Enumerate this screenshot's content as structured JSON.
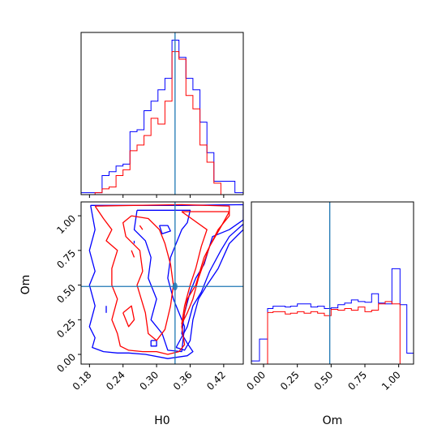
{
  "chart_data": {
    "type": "corner",
    "parameters": [
      "H0",
      "Om"
    ],
    "truth": {
      "H0": 0.333,
      "Om": 0.49
    },
    "series_colors": {
      "blue": "#0000ff",
      "red": "#ff0000",
      "truth": "#1f77b4"
    },
    "hist_H0": {
      "xlim": [
        0.165,
        0.455
      ],
      "bins": [
        0.165,
        0.1775,
        0.19,
        0.2025,
        0.215,
        0.2275,
        0.24,
        0.2525,
        0.265,
        0.2775,
        0.29,
        0.3025,
        0.315,
        0.3275,
        0.34,
        0.3525,
        0.365,
        0.3775,
        0.39,
        0.4025,
        0.415,
        0.4275,
        0.44,
        0.455
      ],
      "blue": [
        1,
        1,
        1,
        10,
        12,
        15,
        16,
        33,
        34,
        44,
        49,
        55,
        61,
        81,
        72,
        61,
        55,
        38,
        22,
        7,
        7,
        7,
        1
      ],
      "red": [
        0,
        0,
        1,
        3,
        4,
        10,
        13,
        23,
        26,
        31,
        40,
        37,
        49,
        75,
        71,
        52,
        45,
        26,
        17,
        6,
        0,
        0,
        0
      ],
      "show_y_ticks": false,
      "show_x_tick_labels": false
    },
    "hist_Om": {
      "xlim": [
        -0.09,
        1.11
      ],
      "bins": [
        -0.09,
        -0.03,
        0.03,
        0.07,
        0.11,
        0.16,
        0.2,
        0.25,
        0.3,
        0.35,
        0.4,
        0.45,
        0.5,
        0.55,
        0.6,
        0.65,
        0.7,
        0.75,
        0.8,
        0.85,
        0.9,
        0.95,
        1.01,
        1.06,
        1.11
      ],
      "blue": [
        4,
        32,
        71,
        74,
        74,
        73,
        74,
        77,
        77,
        73,
        74,
        71,
        72,
        76,
        78,
        82,
        80,
        79,
        90,
        78,
        77,
        122,
        76,
        14
      ],
      "red": [
        0,
        0,
        66,
        67,
        67,
        64,
        65,
        67,
        65,
        67,
        65,
        62,
        70,
        69,
        71,
        69,
        73,
        67,
        69,
        77,
        80,
        77,
        0,
        0
      ],
      "show_y_ticks": false
    },
    "scatter_2d": {
      "xlabel": "H0",
      "ylabel": "Om",
      "xlim": [
        0.165,
        0.455
      ],
      "ylim": [
        -0.07,
        1.1
      ],
      "xticks": [
        0.18,
        0.24,
        0.3,
        0.36,
        0.42
      ],
      "xtick_labels": [
        "0.18",
        "0.24",
        "0.30",
        "0.36",
        "0.42"
      ],
      "yticks": [
        0.0,
        0.25,
        0.5,
        0.75,
        1.0
      ],
      "ytick_labels": [
        "0.00",
        "0.25",
        "0.50",
        "0.75",
        "1.00"
      ],
      "contours": [
        {
          "color": "blue",
          "points": [
            [
              0.182,
              1.075
            ],
            [
              0.345,
              1.075
            ],
            [
              0.455,
              1.08
            ],
            [
              0.455,
              0.97
            ],
            [
              0.43,
              0.9
            ],
            [
              0.4,
              0.85
            ],
            [
              0.385,
              0.65
            ],
            [
              0.37,
              0.55
            ],
            [
              0.36,
              0.45
            ],
            [
              0.35,
              0.3
            ],
            [
              0.345,
              0.15
            ],
            [
              0.355,
              0.08
            ],
            [
              0.365,
              0.02
            ],
            [
              0.355,
              -0.01
            ],
            [
              0.32,
              -0.03
            ],
            [
              0.28,
              0.0
            ],
            [
              0.25,
              0.01
            ],
            [
              0.23,
              0.01
            ],
            [
              0.205,
              0.02
            ],
            [
              0.185,
              0.05
            ],
            [
              0.19,
              0.12
            ],
            [
              0.18,
              0.2
            ],
            [
              0.19,
              0.35
            ],
            [
              0.18,
              0.5
            ],
            [
              0.19,
              0.6
            ],
            [
              0.18,
              0.75
            ],
            [
              0.19,
              0.9
            ],
            [
              0.182,
              1.075
            ]
          ]
        },
        {
          "color": "blue",
          "points": [
            [
              0.335,
              0.05
            ],
            [
              0.355,
              0.2
            ],
            [
              0.365,
              0.35
            ],
            [
              0.38,
              0.45
            ],
            [
              0.395,
              0.6
            ],
            [
              0.415,
              0.75
            ],
            [
              0.43,
              0.85
            ],
            [
              0.455,
              0.94
            ],
            [
              0.455,
              0.9
            ],
            [
              0.445,
              0.86
            ],
            [
              0.43,
              0.8
            ],
            [
              0.41,
              0.62
            ],
            [
              0.39,
              0.5
            ],
            [
              0.375,
              0.4
            ],
            [
              0.365,
              0.25
            ],
            [
              0.36,
              0.1
            ],
            [
              0.35,
              0.03
            ],
            [
              0.335,
              0.05
            ]
          ]
        },
        {
          "color": "blue",
          "points": [
            [
              0.265,
              1.04
            ],
            [
              0.26,
              0.9
            ],
            [
              0.28,
              0.82
            ],
            [
              0.29,
              0.7
            ],
            [
              0.285,
              0.55
            ],
            [
              0.3,
              0.4
            ],
            [
              0.29,
              0.25
            ],
            [
              0.31,
              0.15
            ],
            [
              0.32,
              0.03
            ],
            [
              0.345,
              0.02
            ],
            [
              0.35,
              0.2
            ],
            [
              0.33,
              0.4
            ],
            [
              0.32,
              0.55
            ],
            [
              0.325,
              0.7
            ],
            [
              0.345,
              0.9
            ],
            [
              0.355,
              0.95
            ],
            [
              0.36,
              1.04
            ],
            [
              0.265,
              1.04
            ]
          ]
        },
        {
          "color": "blue",
          "points": [
            [
              0.305,
              0.93
            ],
            [
              0.32,
              0.93
            ],
            [
              0.325,
              0.89
            ],
            [
              0.31,
              0.87
            ],
            [
              0.305,
              0.93
            ]
          ]
        },
        {
          "color": "blue",
          "points": [
            [
              0.29,
              0.1
            ],
            [
              0.3,
              0.1
            ],
            [
              0.3,
              0.06
            ],
            [
              0.29,
              0.06
            ],
            [
              0.29,
              0.1
            ]
          ]
        },
        {
          "color": "blue",
          "points": [
            [
              0.26,
              0.82
            ],
            [
              0.26,
              0.8
            ]
          ]
        },
        {
          "color": "blue",
          "points": [
            [
              0.21,
              0.35
            ],
            [
              0.21,
              0.3
            ]
          ]
        },
        {
          "color": "red",
          "points": [
            [
              0.19,
              1.07
            ],
            [
              0.345,
              1.08
            ],
            [
              0.43,
              1.07
            ],
            [
              0.43,
              1.0
            ],
            [
              0.41,
              0.9
            ],
            [
              0.385,
              0.7
            ],
            [
              0.37,
              0.5
            ],
            [
              0.355,
              0.4
            ],
            [
              0.345,
              0.2
            ],
            [
              0.35,
              0.07
            ],
            [
              0.34,
              0.02
            ],
            [
              0.32,
              0.0
            ],
            [
              0.3,
              0.02
            ],
            [
              0.275,
              0.02
            ],
            [
              0.25,
              0.03
            ],
            [
              0.235,
              0.06
            ],
            [
              0.23,
              0.15
            ],
            [
              0.22,
              0.25
            ],
            [
              0.23,
              0.4
            ],
            [
              0.22,
              0.5
            ],
            [
              0.22,
              0.62
            ],
            [
              0.23,
              0.75
            ],
            [
              0.21,
              0.82
            ],
            [
              0.22,
              0.9
            ],
            [
              0.205,
              0.98
            ],
            [
              0.19,
              1.07
            ]
          ]
        },
        {
          "color": "red",
          "points": [
            [
              0.345,
              1.03
            ],
            [
              0.43,
              1.03
            ],
            [
              0.415,
              0.92
            ],
            [
              0.395,
              0.78
            ],
            [
              0.375,
              0.55
            ],
            [
              0.365,
              0.4
            ],
            [
              0.355,
              0.3
            ],
            [
              0.345,
              0.22
            ],
            [
              0.35,
              0.35
            ],
            [
              0.36,
              0.5
            ],
            [
              0.37,
              0.62
            ],
            [
              0.38,
              0.78
            ],
            [
              0.39,
              0.9
            ],
            [
              0.345,
              1.03
            ]
          ]
        },
        {
          "color": "red",
          "points": [
            [
              0.255,
              1.0
            ],
            [
              0.24,
              0.95
            ],
            [
              0.245,
              0.85
            ],
            [
              0.27,
              0.75
            ],
            [
              0.275,
              0.6
            ],
            [
              0.265,
              0.5
            ],
            [
              0.28,
              0.3
            ],
            [
              0.285,
              0.15
            ],
            [
              0.3,
              0.1
            ],
            [
              0.315,
              0.18
            ],
            [
              0.325,
              0.35
            ],
            [
              0.33,
              0.5
            ],
            [
              0.325,
              0.65
            ],
            [
              0.315,
              0.8
            ],
            [
              0.305,
              0.9
            ],
            [
              0.285,
              0.98
            ],
            [
              0.255,
              1.0
            ]
          ]
        },
        {
          "color": "red",
          "points": [
            [
              0.24,
              0.3
            ],
            [
              0.25,
              0.2
            ],
            [
              0.26,
              0.25
            ],
            [
              0.255,
              0.35
            ],
            [
              0.24,
              0.3
            ]
          ]
        },
        {
          "color": "red",
          "points": [
            [
              0.27,
              0.93
            ],
            [
              0.275,
              0.9
            ]
          ]
        },
        {
          "color": "red",
          "points": [
            [
              0.255,
              0.75
            ],
            [
              0.26,
              0.7
            ]
          ]
        }
      ]
    }
  }
}
